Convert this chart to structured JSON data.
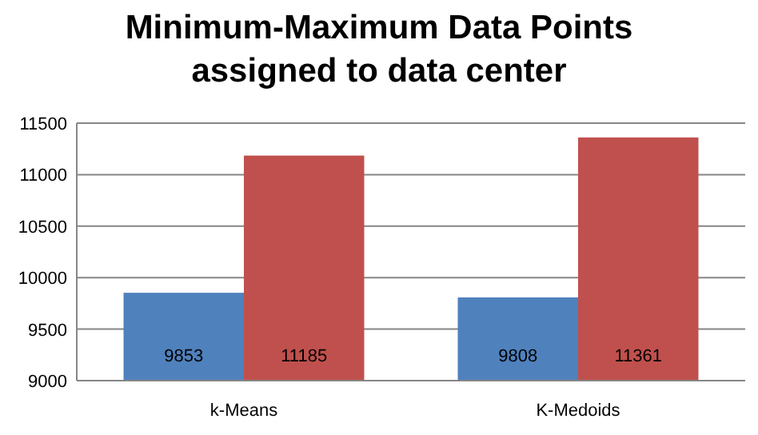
{
  "chart_data": {
    "type": "bar",
    "title": "Minimum-Maximum Data Points\nassigned to data center",
    "categories": [
      "k-Means",
      "K-Medoids"
    ],
    "series": [
      {
        "color": "#4f81bd",
        "values": [
          9853,
          9808
        ]
      },
      {
        "color": "#c0504d",
        "values": [
          11185,
          11361
        ]
      }
    ],
    "ylim": [
      9000,
      11500
    ],
    "yticks": [
      9000,
      9500,
      10000,
      10500,
      11000,
      11500
    ],
    "grid": "y",
    "data_labels": true
  }
}
